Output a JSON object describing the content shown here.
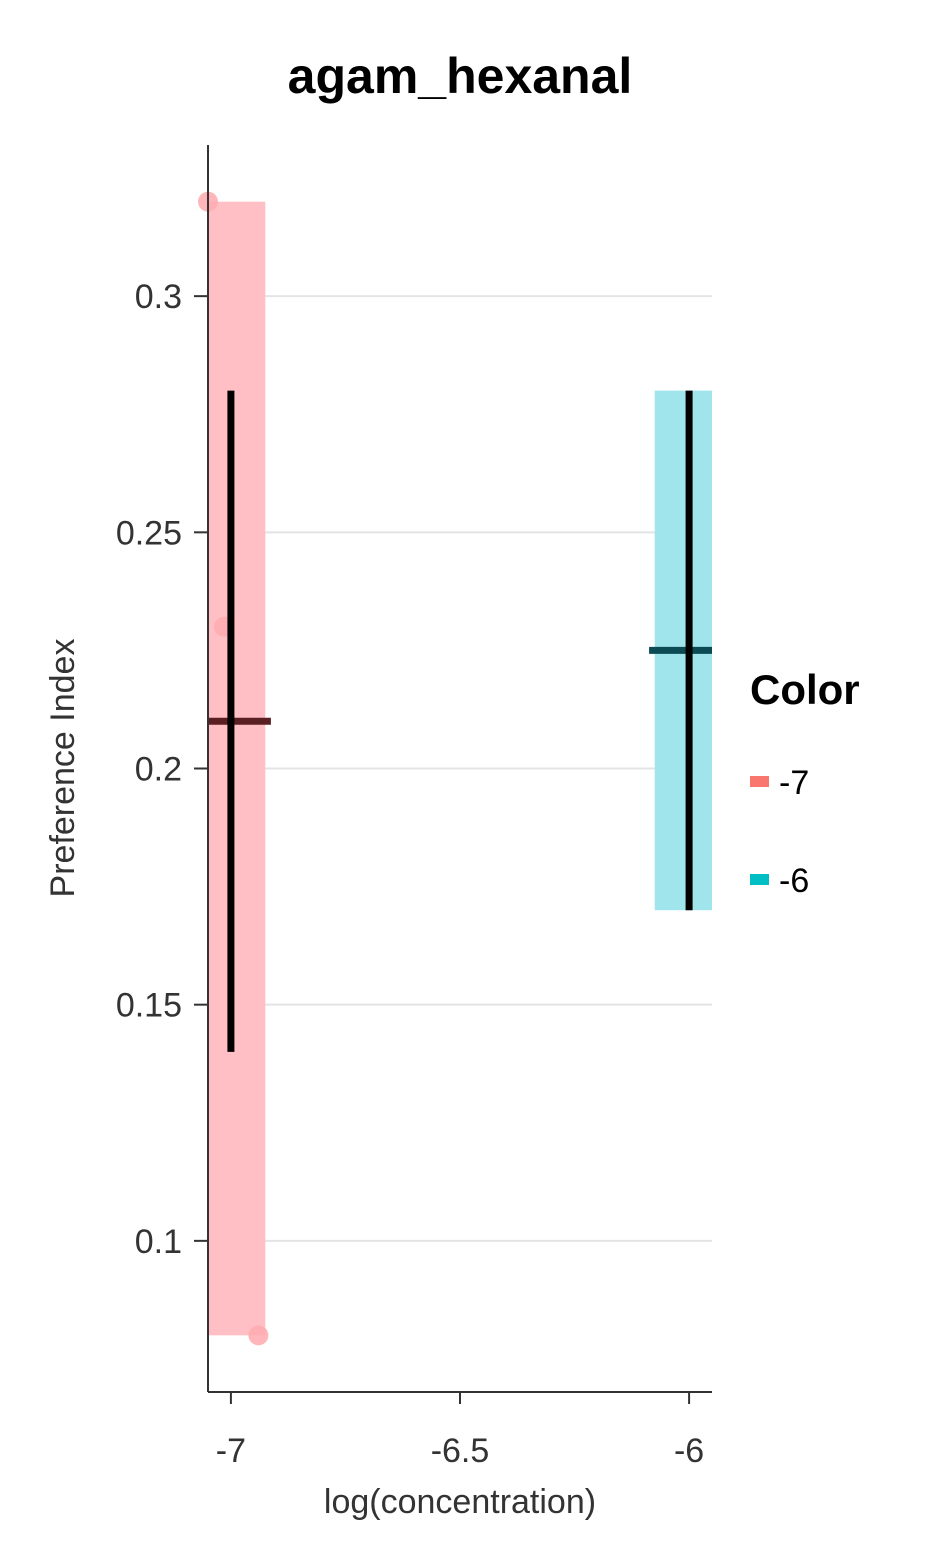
{
  "chart_data": {
    "type": "scatter",
    "title": "agam_hexanal",
    "xlabel": "log(concentration)",
    "ylabel": "Preference Index",
    "xlim": [
      -7.05,
      -5.95
    ],
    "ylim": [
      0.068,
      0.332
    ],
    "xticks": [
      -7,
      -6.5,
      -6
    ],
    "xtick_labels": [
      "-7",
      "-6.5",
      "-6"
    ],
    "yticks": [
      0.1,
      0.15,
      0.2,
      0.25,
      0.3
    ],
    "ytick_labels": [
      "0.1",
      "0.15",
      "0.2",
      "0.25",
      "0.3"
    ],
    "grid": "horizontal",
    "legend": {
      "title": "Color",
      "placement": "right",
      "entries": [
        {
          "label": "-7",
          "color": "#f8766d"
        },
        {
          "label": "-6",
          "color": "#00bfc4"
        }
      ]
    },
    "series": [
      {
        "name": "-7",
        "color": "#f8766d",
        "fill_color": "#ffbfc4",
        "x": -7,
        "range": [
          0.08,
          0.32
        ],
        "band_x": [
          -7.05,
          -6.925
        ],
        "mean": 0.21,
        "error": [
          0.14,
          0.28
        ],
        "points": [
          {
            "x": -7.05,
            "y": 0.32
          },
          {
            "x": -7.015,
            "y": 0.23
          },
          {
            "x": -6.94,
            "y": 0.08
          }
        ]
      },
      {
        "name": "-6",
        "color": "#00bfc4",
        "fill_color": "#a0e4ec",
        "x": -6,
        "range": [
          0.17,
          0.28
        ],
        "band_x": [
          -6.075,
          -5.95
        ],
        "mean": 0.225,
        "error": [
          0.17,
          0.28
        ],
        "points": []
      }
    ]
  }
}
